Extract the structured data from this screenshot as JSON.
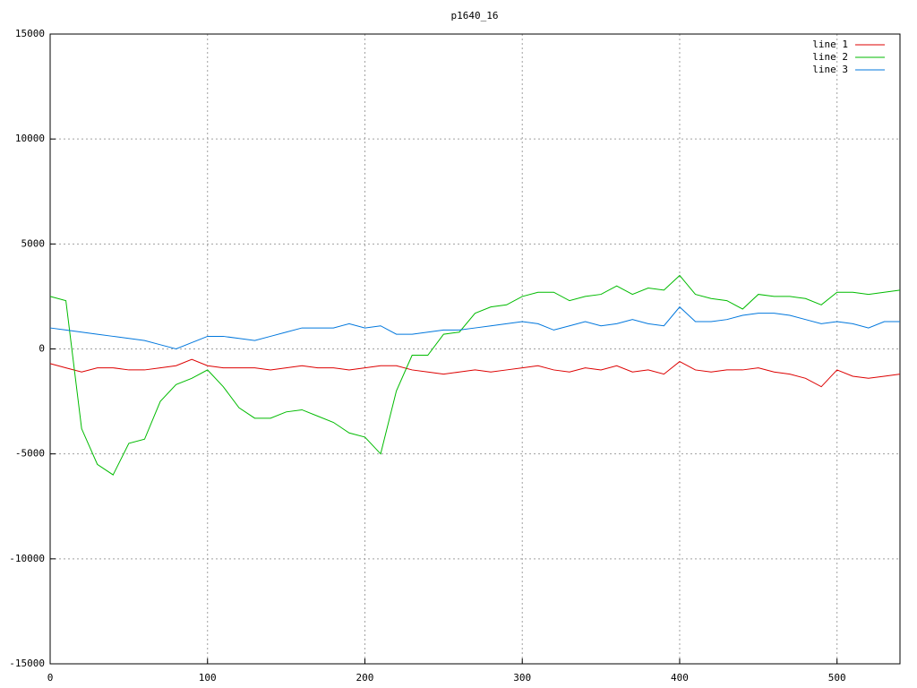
{
  "chart_data": {
    "type": "line",
    "title": "p1640_16",
    "x": [
      0,
      10,
      20,
      30,
      40,
      50,
      60,
      70,
      80,
      90,
      100,
      110,
      120,
      130,
      140,
      150,
      160,
      170,
      180,
      190,
      200,
      210,
      220,
      230,
      240,
      250,
      260,
      270,
      280,
      290,
      300,
      310,
      320,
      330,
      340,
      350,
      360,
      370,
      380,
      390,
      400,
      410,
      420,
      430,
      440,
      450,
      460,
      470,
      480,
      490,
      500,
      510,
      520,
      530,
      540
    ],
    "series": [
      {
        "name": "line 1",
        "color": "#dd0000",
        "values": [
          -700,
          -900,
          -1100,
          -900,
          -900,
          -1000,
          -1000,
          -900,
          -800,
          -500,
          -800,
          -900,
          -900,
          -900,
          -1000,
          -900,
          -800,
          -900,
          -900,
          -1000,
          -900,
          -800,
          -800,
          -1000,
          -1100,
          -1200,
          -1100,
          -1000,
          -1100,
          -1000,
          -900,
          -800,
          -1000,
          -1100,
          -900,
          -1000,
          -800,
          -1100,
          -1000,
          -1200,
          -600,
          -1000,
          -1100,
          -1000,
          -1000,
          -900,
          -1100,
          -1200,
          -1400,
          -1800,
          -1000,
          -1300,
          -1400,
          -1300,
          -1200
        ]
      },
      {
        "name": "line 2",
        "color": "#00bb00",
        "values": [
          2500,
          2300,
          -3800,
          -5500,
          -6000,
          -4500,
          -4300,
          -2500,
          -1700,
          -1400,
          -1000,
          -1800,
          -2800,
          -3300,
          -3300,
          -3000,
          -2900,
          -3200,
          -3500,
          -4000,
          -4200,
          -5000,
          -2000,
          -300,
          -300,
          700,
          800,
          1700,
          2000,
          2100,
          2500,
          2700,
          2700,
          2300,
          2500,
          2600,
          3000,
          2600,
          2900,
          2800,
          3500,
          2600,
          2400,
          2300,
          1900,
          2600,
          2500,
          2500,
          2400,
          2100,
          2700,
          2700,
          2600,
          2700,
          2800
        ]
      },
      {
        "name": "line 3",
        "color": "#0077dd",
        "values": [
          1000,
          900,
          800,
          700,
          600,
          500,
          400,
          200,
          0,
          300,
          600,
          600,
          500,
          400,
          600,
          800,
          1000,
          1000,
          1000,
          1200,
          1000,
          1100,
          700,
          700,
          800,
          900,
          900,
          1000,
          1100,
          1200,
          1300,
          1200,
          900,
          1100,
          1300,
          1100,
          1200,
          1400,
          1200,
          1100,
          2000,
          1300,
          1300,
          1400,
          1600,
          1700,
          1700,
          1600,
          1400,
          1200,
          1300,
          1200,
          1000,
          1300,
          1300
        ]
      }
    ],
    "xlim": [
      0,
      540
    ],
    "xticks": [
      0,
      100,
      200,
      300,
      400,
      500
    ],
    "ylim": [
      -15000,
      15000
    ],
    "yticks": [
      -15000,
      -10000,
      -5000,
      0,
      5000,
      10000,
      15000
    ],
    "grid": true,
    "legend": "top-right"
  }
}
